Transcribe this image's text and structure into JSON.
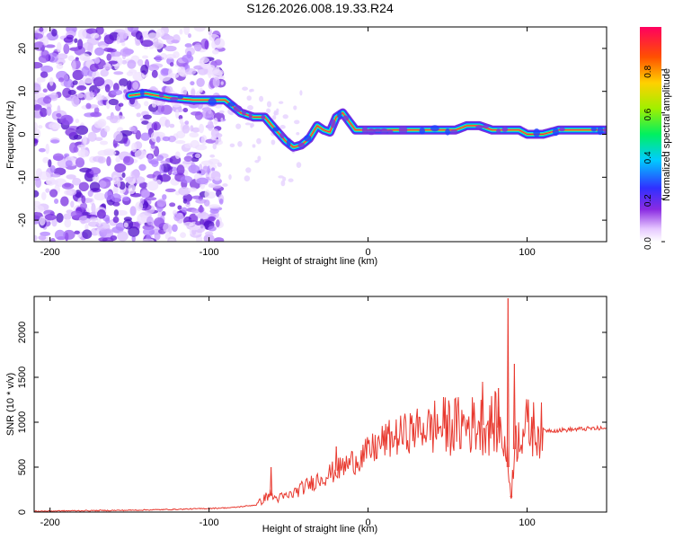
{
  "title": "S126.2026.008.19.33.R24",
  "colors": {
    "snr_line": "#e8392f",
    "spectro_purple": "#8a3df0",
    "axis": "#000000",
    "background": "#ffffff"
  },
  "chart_data": [
    {
      "type": "heatmap",
      "name": "spectrogram",
      "xlabel": "Height of straight line (km)",
      "ylabel": "Frequency (Hz)",
      "xlim": [
        -210,
        150
      ],
      "ylim": [
        -25,
        25
      ],
      "x_ticks": [
        "-200",
        "-100",
        "0",
        "100"
      ],
      "y_ticks": [
        "20",
        "10",
        "0",
        "-10",
        "-20"
      ],
      "colorbar": {
        "label": "Normalized spectral amplitude",
        "range": [
          0,
          1
        ],
        "ticks": [
          "0.0",
          "0.2",
          "0.4",
          "0.6",
          "0.8"
        ],
        "colormap": "rainbow (white-purple-blue-cyan-green-yellow-red)"
      },
      "ridge": {
        "description": "Dominant frequency track (Hz) vs height (km)",
        "x": [
          -150,
          -140,
          -125,
          -110,
          -100,
          -90,
          -80,
          -72,
          -65,
          -58,
          -52,
          -47,
          -42,
          -37,
          -32,
          -28,
          -24,
          -20,
          -16,
          -12,
          -8,
          0,
          20,
          40,
          55,
          62,
          70,
          78,
          85,
          90,
          95,
          100,
          110,
          120,
          140,
          150
        ],
        "y": [
          9,
          9.5,
          8.5,
          8,
          8,
          8,
          5,
          4,
          4,
          1,
          -1.5,
          -3,
          -2.5,
          -1,
          2,
          1,
          0.5,
          4,
          5,
          3,
          1,
          1,
          1,
          1,
          1,
          2,
          2,
          1,
          1,
          1,
          1,
          0,
          0,
          1,
          1,
          1
        ]
      },
      "noise_region_x": [
        -210,
        -100
      ]
    },
    {
      "type": "line",
      "name": "snr",
      "xlabel": "Height of straight line (km)",
      "ylabel": "SNR (10 * v/v)",
      "xlim": [
        -210,
        150
      ],
      "ylim": [
        0,
        2400
      ],
      "x_ticks": [
        "-200",
        "-100",
        "0",
        "100"
      ],
      "y_ticks": [
        "0",
        "500",
        "1000",
        "1500",
        "2000"
      ],
      "series": [
        {
          "name": "SNR",
          "x": [
            -210,
            -180,
            -150,
            -120,
            -100,
            -85,
            -70,
            -62,
            -58,
            -50,
            -40,
            -30,
            -20,
            -10,
            0,
            10,
            20,
            30,
            40,
            50,
            60,
            70,
            75,
            80,
            85,
            88,
            90,
            92,
            95,
            100,
            105,
            110,
            120,
            130,
            140,
            150
          ],
          "y": [
            10,
            15,
            20,
            30,
            40,
            50,
            80,
            200,
            150,
            180,
            280,
            380,
            460,
            560,
            660,
            790,
            850,
            920,
            950,
            960,
            960,
            980,
            950,
            1000,
            850,
            500,
            180,
            700,
            900,
            950,
            920,
            910,
            910,
            920,
            930,
            930
          ]
        }
      ],
      "spikes": [
        {
          "x": -61,
          "y": 500
        },
        {
          "x": -20,
          "y": 730
        },
        {
          "x": 72,
          "y": 1450
        },
        {
          "x": 82,
          "y": 1380
        },
        {
          "x": 88,
          "y": 2380
        },
        {
          "x": 90,
          "y": 150
        },
        {
          "x": 92,
          "y": 1650
        },
        {
          "x": 104,
          "y": 1100
        }
      ]
    }
  ]
}
